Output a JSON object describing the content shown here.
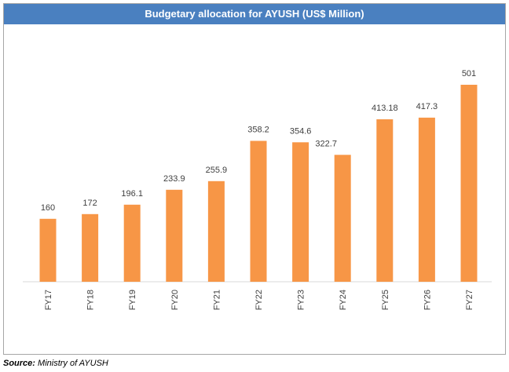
{
  "chart_data": {
    "type": "bar",
    "title": "Budgetary allocation for AYUSH (US$ Million)",
    "categories": [
      "FY17",
      "FY18",
      "FY19",
      "FY20",
      "FY21",
      "FY22",
      "FY23",
      "FY24",
      "FY25",
      "FY26",
      "FY27"
    ],
    "values": [
      160,
      172,
      196.1,
      233.9,
      255.9,
      358.2,
      354.6,
      322.7,
      413.18,
      417.3,
      501
    ],
    "data_labels": [
      "160",
      "172",
      "196.1",
      "233.9",
      "255.9",
      "358.2",
      "354.6",
      "322.7",
      "413.18",
      "417.3",
      "501"
    ],
    "xlabel": "",
    "ylabel": "",
    "ylim": [
      0,
      501
    ],
    "grid": false,
    "legend": "none",
    "bar_color": "#f79646",
    "title_bar_color": "#4a80c0"
  },
  "source": {
    "label": "Source:",
    "text": " Ministry of AYUSH"
  }
}
